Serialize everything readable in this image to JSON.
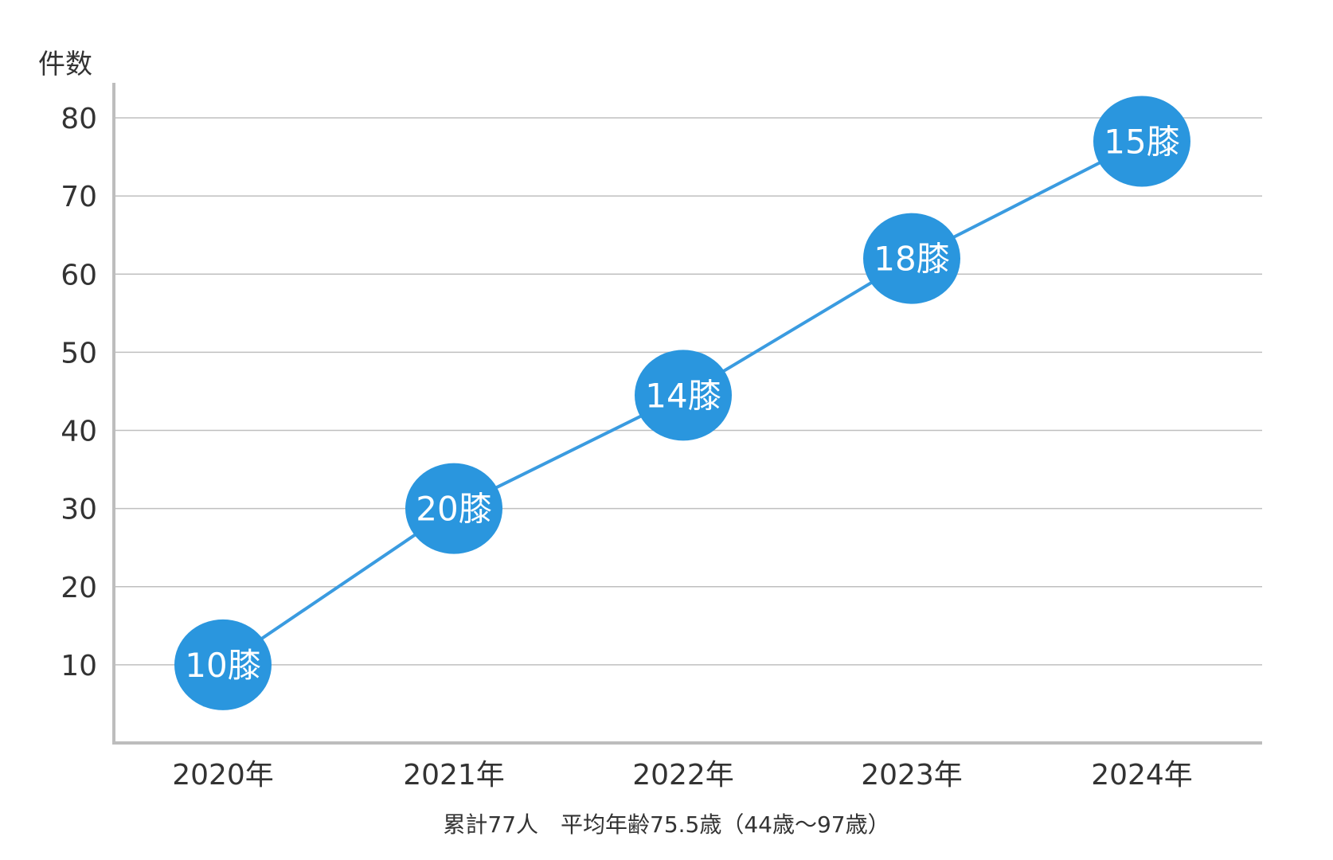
{
  "chart_data": {
    "type": "line",
    "ylabel": "件数",
    "xlabel": "",
    "categories": [
      "2020年",
      "2021年",
      "2022年",
      "2023年",
      "2024年"
    ],
    "series": [
      {
        "values": [
          10,
          30,
          44.5,
          62,
          77
        ],
        "point_labels": [
          "10膝",
          "20膝",
          "14膝",
          "18膝",
          "15膝"
        ]
      }
    ],
    "yticks": [
      "10",
      "20",
      "30",
      "40",
      "50",
      "60",
      "70",
      "80"
    ],
    "ytick_values": [
      10,
      20,
      30,
      40,
      50,
      60,
      70,
      80
    ],
    "ylim": [
      0,
      80
    ],
    "grid": true,
    "legend": "none",
    "caption": "累計77人　平均年齢75.5歳（44歳〜97歳）",
    "colors": {
      "line": "#3a9be0",
      "marker": "#2a96de",
      "marker_label": "#ffffff",
      "grid": "#bfbfbf",
      "axis": "#bdbdbd",
      "text": "#333333"
    }
  }
}
